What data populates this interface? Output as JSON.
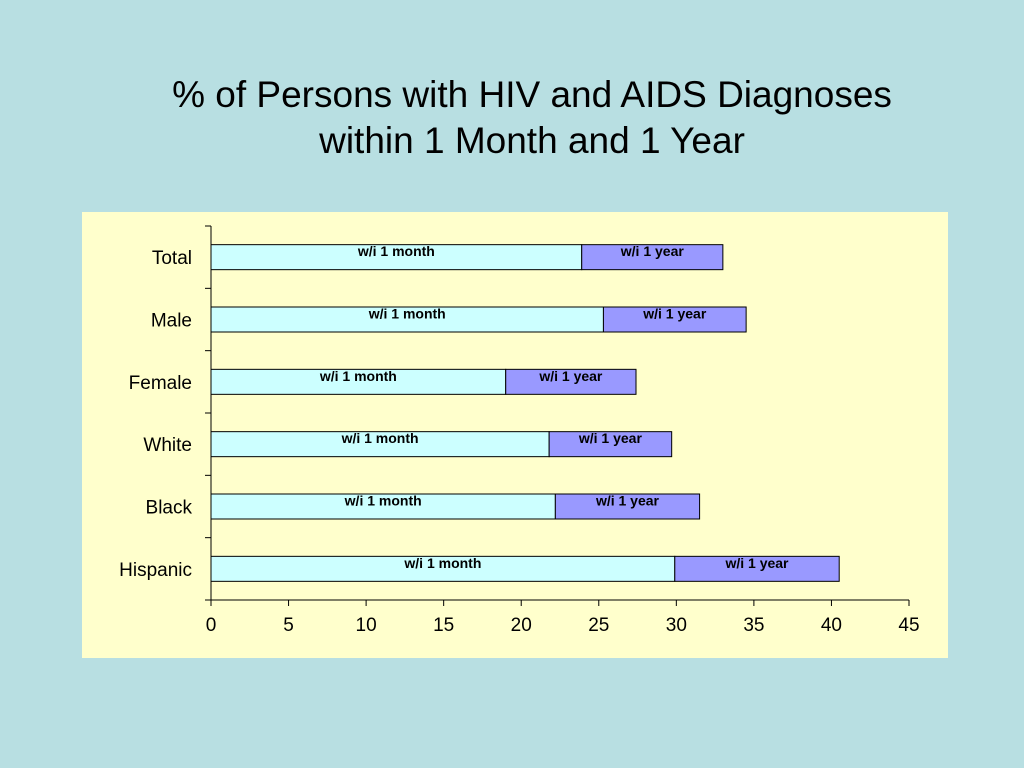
{
  "slide": {
    "title_line1": "% of Persons with HIV and AIDS Diagnoses",
    "title_line2": "within 1 Month and 1 Year"
  },
  "colors": {
    "background": "#b8dfe2",
    "plot_area": "#ffffcc",
    "month_fill": "#ccffff",
    "year_fill": "#9999ff"
  },
  "chart_data": {
    "type": "bar",
    "orientation": "horizontal",
    "stacked": true,
    "title": "% of Persons with HIV and AIDS Diagnoses within 1 Month and 1 Year",
    "xlabel": "",
    "ylabel": "",
    "categories": [
      "Total",
      "Male",
      "Female",
      "White",
      "Black",
      "Hispanic"
    ],
    "series": [
      {
        "key": "month",
        "values": [
          23.9,
          25.3,
          19.0,
          21.8,
          22.2,
          29.9
        ]
      },
      {
        "key": "year",
        "values": [
          9.1,
          9.2,
          8.4,
          7.9,
          9.3,
          10.6
        ]
      }
    ],
    "segment_labels": {
      "month": "w/i 1 month",
      "year": "w/i 1 year"
    },
    "xlim": [
      0,
      45
    ],
    "xticks": [
      "0",
      "5",
      "10",
      "15",
      "20",
      "25",
      "30",
      "35",
      "40",
      "45"
    ],
    "grid": false,
    "legend": "none"
  }
}
